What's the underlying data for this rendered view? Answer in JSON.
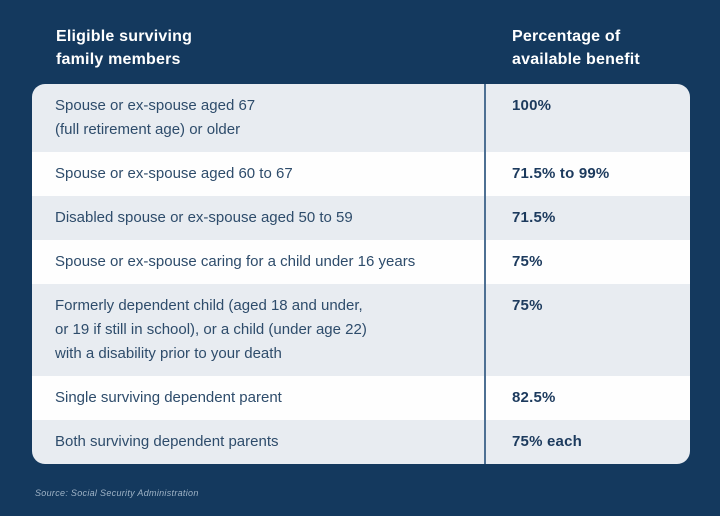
{
  "colors": {
    "background": "#14395E",
    "row_alt": "#E8ECF1",
    "row_white": "#FEFEFE",
    "divider": "#4E7093",
    "header_text": "#FFFFFF",
    "body_text": "#2E4C6B",
    "value_text": "#1C3A5D",
    "source_text": "#9FB3C6"
  },
  "header": {
    "column1": "Eligible surviving\nfamily members",
    "column2": "Percentage of\navailable benefit"
  },
  "table": {
    "rows": [
      {
        "member": "Spouse or ex-spouse aged 67\n(full retirement age) or older",
        "benefit": "100%"
      },
      {
        "member": "Spouse or ex-spouse aged 60 to 67",
        "benefit": "71.5% to 99%"
      },
      {
        "member": "Disabled spouse or ex-spouse aged 50 to 59",
        "benefit": "71.5%"
      },
      {
        "member": "Spouse or ex-spouse caring for a child under 16 years",
        "benefit": "75%"
      },
      {
        "member": "Formerly dependent child (aged 18 and under,\nor 19 if still in school), or a child (under age 22)\nwith a disability prior to your death",
        "benefit": "75%"
      },
      {
        "member": "Single surviving dependent parent",
        "benefit": "82.5%"
      },
      {
        "member": "Both surviving dependent parents",
        "benefit": "75% each"
      }
    ]
  },
  "footer": {
    "source_note": "Source: Social Security Administration"
  },
  "chart_data": {
    "type": "table",
    "title": "",
    "columns": [
      "Eligible surviving family members",
      "Percentage of available benefit"
    ],
    "rows": [
      [
        "Spouse or ex-spouse aged 67 (full retirement age) or older",
        "100%"
      ],
      [
        "Spouse or ex-spouse aged 60 to 67",
        "71.5% to 99%"
      ],
      [
        "Disabled spouse or ex-spouse aged 50 to 59",
        "71.5%"
      ],
      [
        "Spouse or ex-spouse caring for a child under 16 years",
        "75%"
      ],
      [
        "Formerly dependent child (aged 18 and under, or 19 if still in school), or a child (under age 22) with a disability prior to your death",
        "75%"
      ],
      [
        "Single surviving dependent parent",
        "82.5%"
      ],
      [
        "Both surviving dependent parents",
        "75% each"
      ]
    ],
    "source": "Source: Social Security Administration",
    "layout": {
      "row_striping": true,
      "first_row_shaded": true,
      "column_divider": true
    }
  }
}
